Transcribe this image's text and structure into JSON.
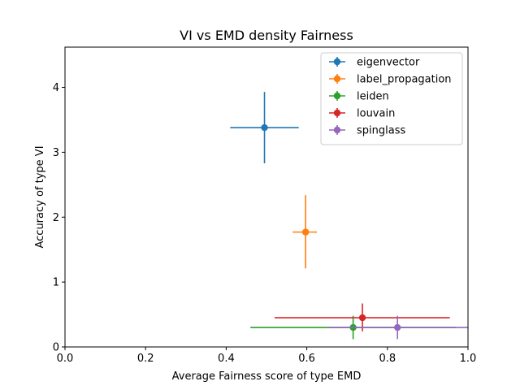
{
  "chart_data": {
    "type": "scatter",
    "title": "VI vs EMD density Fairness",
    "xlabel": "Average Fairness score of type EMD",
    "ylabel": "Accuracy of type VI",
    "xlim": [
      0.0,
      1.0
    ],
    "ylim": [
      0.0,
      4.62
    ],
    "xticks": [
      "0.0",
      "0.2",
      "0.4",
      "0.6",
      "0.8",
      "1.0"
    ],
    "xtick_values": [
      0.0,
      0.2,
      0.4,
      0.6,
      0.8,
      1.0
    ],
    "yticks": [
      "0",
      "1",
      "2",
      "3",
      "4"
    ],
    "ytick_values": [
      0,
      1,
      2,
      3,
      4
    ],
    "grid": false,
    "legend_position": "top-right",
    "series": [
      {
        "name": "eigenvector",
        "color": "#1f77b4",
        "x": 0.495,
        "y": 3.38,
        "xerr": [
          0.41,
          0.58
        ],
        "yerr": [
          2.83,
          3.93
        ]
      },
      {
        "name": "label_propagation",
        "color": "#ff7f0e",
        "x": 0.597,
        "y": 1.77,
        "xerr": [
          0.565,
          0.625
        ],
        "yerr": [
          1.21,
          2.34
        ]
      },
      {
        "name": "leiden",
        "color": "#2ca02c",
        "x": 0.715,
        "y": 0.3,
        "xerr": [
          0.46,
          0.97
        ],
        "yerr": [
          0.12,
          0.48
        ]
      },
      {
        "name": "louvain",
        "color": "#d62728",
        "x": 0.738,
        "y": 0.45,
        "xerr": [
          0.52,
          0.955
        ],
        "yerr": [
          0.24,
          0.67
        ]
      },
      {
        "name": "spinglass",
        "color": "#9467bd",
        "x": 0.825,
        "y": 0.3,
        "xerr": [
          0.655,
          1.0
        ],
        "yerr": [
          0.12,
          0.48
        ]
      }
    ]
  }
}
